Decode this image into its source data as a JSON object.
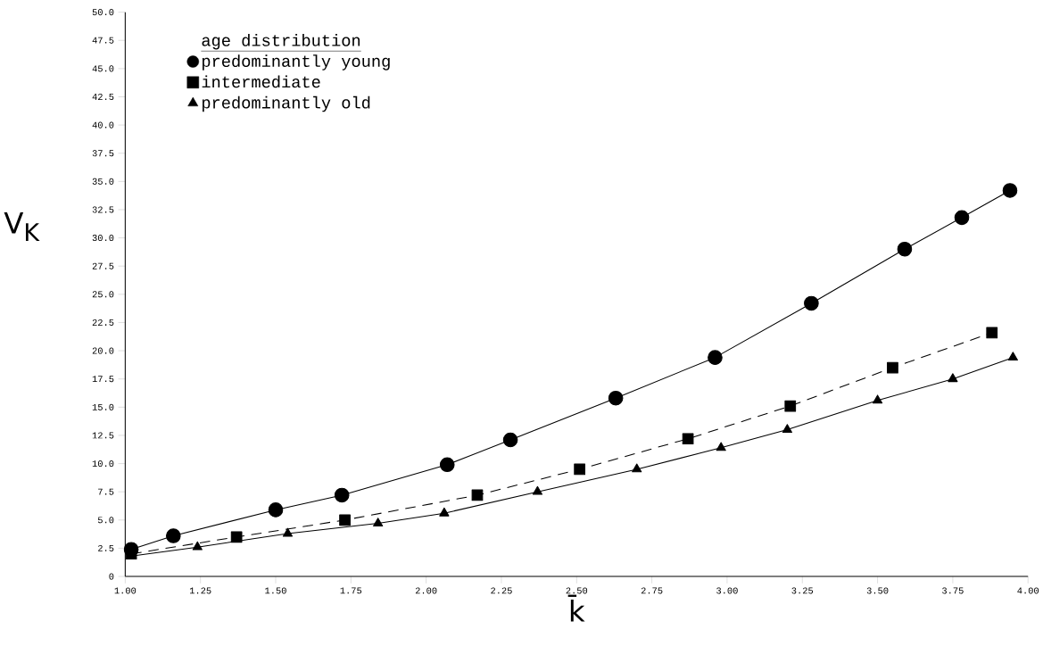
{
  "chart_data": {
    "type": "line",
    "xlabel": "k̄",
    "ylabel": "V$_{K}$",
    "legend_title": "age distribution",
    "legend": "top left",
    "xlim": [
      1.0,
      4.0
    ],
    "ylim": [
      0,
      50
    ],
    "xticks": [
      {
        "value": 1.0,
        "label": "1.00"
      },
      {
        "value": 1.25,
        "label": "1.25"
      },
      {
        "value": 1.5,
        "label": "1.50"
      },
      {
        "value": 1.75,
        "label": "1.75"
      },
      {
        "value": 2.0,
        "label": "2.00"
      },
      {
        "value": 2.25,
        "label": "2.25"
      },
      {
        "value": 2.5,
        "label": "2.50"
      },
      {
        "value": 2.75,
        "label": "2.75"
      },
      {
        "value": 3.0,
        "label": "3.00"
      },
      {
        "value": 3.25,
        "label": "3.25"
      },
      {
        "value": 3.5,
        "label": "3.50"
      },
      {
        "value": 3.75,
        "label": "3.75"
      },
      {
        "value": 4.0,
        "label": "4.00"
      }
    ],
    "yticks": [
      0,
      {
        "value": 2.5,
        "label": "2.5"
      },
      {
        "value": 5,
        "label": "5.0"
      },
      {
        "value": 7.5,
        "label": "7.5"
      },
      {
        "value": 10,
        "label": "10.0"
      },
      {
        "value": 12.5,
        "label": "12.5"
      },
      {
        "value": 15,
        "label": "15.0"
      },
      {
        "value": 17.5,
        "label": "17.5"
      },
      {
        "value": 20,
        "label": "20.0"
      },
      {
        "value": 22.5,
        "label": "22.5"
      },
      {
        "value": 25,
        "label": "25.0"
      },
      {
        "value": 27.5,
        "label": "27.5"
      },
      {
        "value": 30,
        "label": "30.0"
      },
      {
        "value": 32.5,
        "label": "32.5"
      },
      {
        "value": 35,
        "label": "35.0"
      },
      {
        "value": 37.5,
        "label": "37.5"
      },
      {
        "value": 40,
        "label": "40.0"
      },
      {
        "value": 42.5,
        "label": "42.5"
      },
      {
        "value": 45,
        "label": "45.0"
      },
      {
        "value": 47.5,
        "label": "47.5"
      },
      {
        "value": 50,
        "label": "50.0"
      }
    ],
    "series": [
      {
        "name": "predominantly young",
        "color": "#000000",
        "marker": "circle",
        "line_style": "solid",
        "x": [
          1.02,
          1.16,
          1.5,
          1.72,
          2.07,
          2.28,
          2.63,
          2.96,
          3.28,
          3.59,
          3.78,
          3.94
        ],
        "values": [
          2.4,
          3.6,
          5.9,
          7.2,
          9.9,
          12.1,
          15.8,
          19.4,
          24.2,
          29.0,
          31.8,
          34.2
        ]
      },
      {
        "name": "intermediate",
        "color": "#000000",
        "marker": "square",
        "line_style": "dashed",
        "x": [
          1.02,
          1.37,
          1.73,
          2.17,
          2.51,
          2.87,
          3.21,
          3.55,
          3.88
        ],
        "values": [
          2.0,
          3.5,
          5.0,
          7.2,
          9.5,
          12.2,
          15.1,
          18.5,
          21.6
        ]
      },
      {
        "name": "predominantly old",
        "color": "#000000",
        "marker": "triangle",
        "line_style": "solid",
        "x": [
          1.02,
          1.24,
          1.54,
          1.84,
          2.06,
          2.37,
          2.7,
          2.98,
          3.2,
          3.5,
          3.75,
          3.95
        ],
        "values": [
          1.8,
          2.6,
          3.8,
          4.7,
          5.6,
          7.5,
          9.5,
          11.4,
          13.0,
          15.6,
          17.5,
          19.4
        ]
      }
    ]
  }
}
